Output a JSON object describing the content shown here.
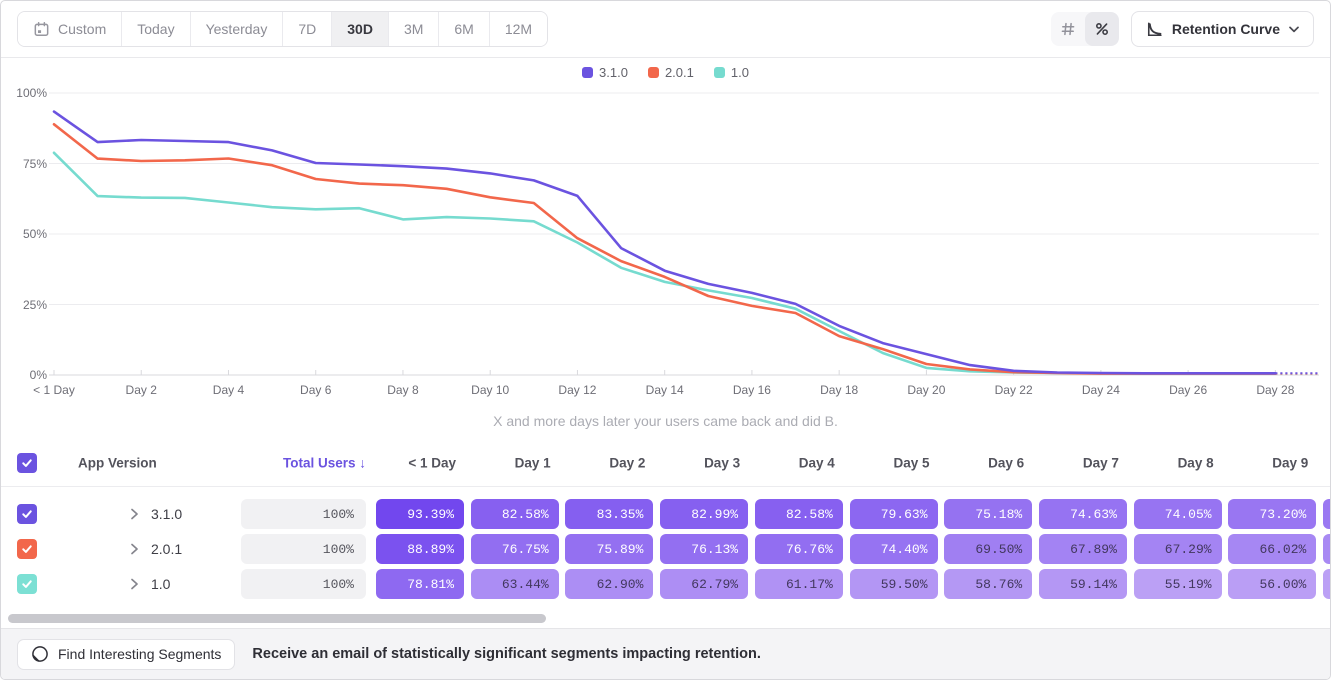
{
  "toolbar": {
    "date_ranges": [
      {
        "label": "Custom",
        "icon": "calendar-icon",
        "active": false
      },
      {
        "label": "Today",
        "active": false
      },
      {
        "label": "Yesterday",
        "active": false
      },
      {
        "label": "7D",
        "active": false
      },
      {
        "label": "30D",
        "active": true
      },
      {
        "label": "3M",
        "active": false
      },
      {
        "label": "6M",
        "active": false
      },
      {
        "label": "12M",
        "active": false
      }
    ],
    "view_toggles": [
      {
        "name": "number-view",
        "icon": "hash-icon",
        "active": false
      },
      {
        "name": "percent-view",
        "icon": "percent-icon",
        "active": true
      }
    ],
    "chart_type": {
      "label": "Retention Curve",
      "icon": "retention-curve-icon"
    }
  },
  "chart_data": {
    "type": "line",
    "subtitle": "X and more days later your users came back and did B.",
    "ylim": [
      0,
      100
    ],
    "grid": true,
    "legend_position": "top",
    "y_tick_labels": [
      "0%",
      "25%",
      "50%",
      "75%",
      "100%"
    ],
    "y_tick_values": [
      0,
      25,
      50,
      75,
      100
    ],
    "x_tick_days": [
      0,
      2,
      4,
      6,
      8,
      10,
      12,
      14,
      16,
      18,
      20,
      22,
      24,
      26,
      28
    ],
    "x_tick_labels": [
      "< 1 Day",
      "Day 2",
      "Day 4",
      "Day 6",
      "Day 8",
      "Day 10",
      "Day 12",
      "Day 14",
      "Day 16",
      "Day 18",
      "Day 20",
      "Day 22",
      "Day 24",
      "Day 26",
      "Day 28"
    ],
    "x": [
      0,
      1,
      2,
      3,
      4,
      5,
      6,
      7,
      8,
      9,
      10,
      11,
      12,
      13,
      14,
      15,
      16,
      17,
      18,
      19,
      20,
      21,
      22,
      23,
      24,
      25,
      26,
      27,
      28,
      29
    ],
    "dashed_tail_from_day": 28,
    "series": [
      {
        "name": "3.1.0",
        "color": "#6b53e0",
        "values": [
          93.39,
          82.58,
          83.35,
          82.99,
          82.58,
          79.63,
          75.18,
          74.63,
          74.05,
          73.2,
          71.5,
          69.0,
          63.5,
          45.0,
          37.0,
          32.3,
          29.1,
          25.2,
          17.4,
          11.3,
          7.4,
          3.5,
          1.5,
          0.9,
          0.7,
          0.6,
          0.6,
          0.6,
          0.6,
          0.6
        ]
      },
      {
        "name": "2.0.1",
        "color": "#f2674b",
        "values": [
          88.89,
          76.75,
          75.89,
          76.13,
          76.76,
          74.4,
          69.5,
          67.89,
          67.29,
          66.02,
          63.0,
          61.0,
          48.5,
          40.4,
          34.8,
          28.0,
          24.5,
          22.0,
          13.8,
          9.2,
          3.9,
          2.0,
          1.0,
          0.7,
          0.5,
          0.5,
          0.5,
          0.5,
          0.5,
          0.5
        ]
      },
      {
        "name": "1.0",
        "color": "#76dbcf",
        "values": [
          78.81,
          63.44,
          62.9,
          62.79,
          61.17,
          59.5,
          58.76,
          59.14,
          55.19,
          56.0,
          55.5,
          54.5,
          47.0,
          38.0,
          33.0,
          30.0,
          27.3,
          23.5,
          15.6,
          7.8,
          2.5,
          1.3,
          0.9,
          0.7,
          0.6,
          0.5,
          0.5,
          0.5,
          0.5,
          0.5
        ]
      }
    ]
  },
  "table": {
    "columns": [
      "App Version",
      "Total Users",
      "< 1 Day",
      "Day 1",
      "Day 2",
      "Day 3",
      "Day 4",
      "Day 5",
      "Day 6",
      "Day 7",
      "Day 8",
      "Day 9"
    ],
    "sort_column": "Total Users",
    "sort_indicator": "↓",
    "header_checkbox_checked": true,
    "rows": [
      {
        "version": "3.1.0",
        "color": "#6b53e0",
        "checked": true,
        "total_users": "100%",
        "values": [
          "93.39%",
          "82.58%",
          "83.35%",
          "82.99%",
          "82.58%",
          "79.63%",
          "75.18%",
          "74.63%",
          "74.05%",
          "73.20%"
        ]
      },
      {
        "version": "2.0.1",
        "color": "#f2674b",
        "checked": true,
        "total_users": "100%",
        "values": [
          "88.89%",
          "76.75%",
          "75.89%",
          "76.13%",
          "76.76%",
          "74.40%",
          "69.50%",
          "67.89%",
          "67.29%",
          "66.02%"
        ]
      },
      {
        "version": "1.0",
        "color": "#7ce0d4",
        "checked": true,
        "total_users": "100%",
        "values": [
          "78.81%",
          "63.44%",
          "62.90%",
          "62.79%",
          "61.17%",
          "59.50%",
          "58.76%",
          "59.14%",
          "55.19%",
          "56.00%"
        ]
      }
    ]
  },
  "footer": {
    "button_label": "Find Interesting Segments",
    "message": "Receive an email of statistically significant segments impacting retention."
  },
  "colors": {
    "accent_purple": "#6b53e0",
    "accent_orange": "#f2674b",
    "accent_teal": "#76dbcf",
    "cell_scale_low": "#c5acf6",
    "cell_scale_high": "#7146ee",
    "cell_text_dark": "#42375e",
    "cell_text_light": "#ffffff"
  }
}
